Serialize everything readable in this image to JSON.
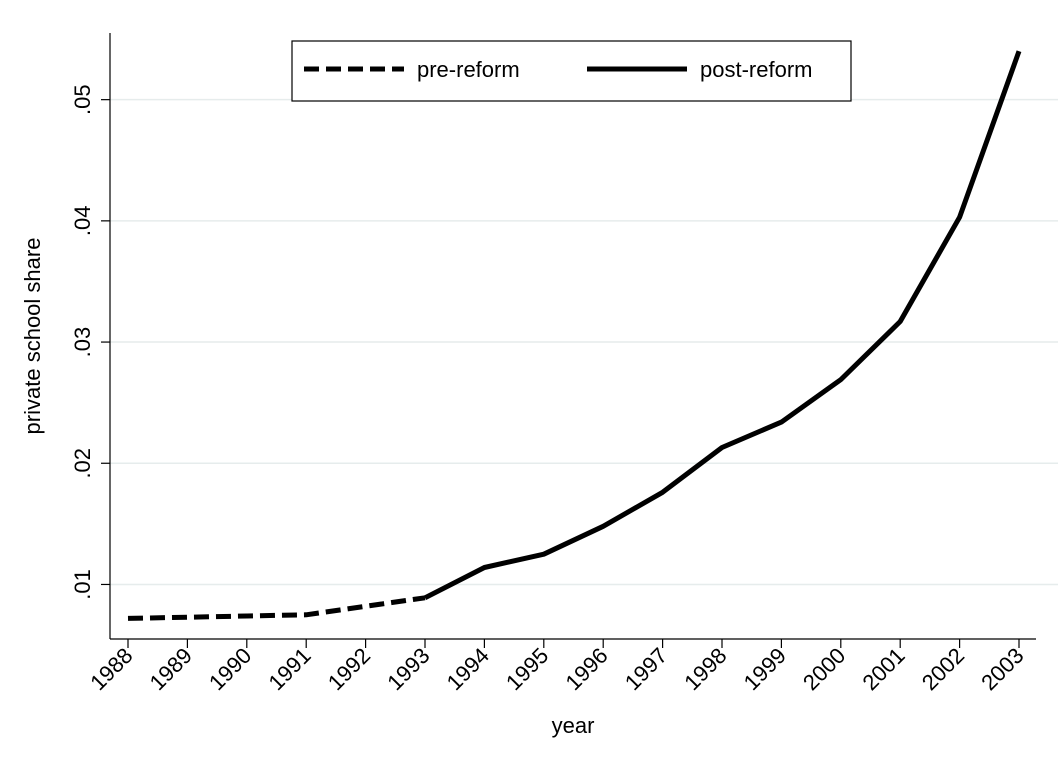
{
  "chart_data": {
    "type": "line",
    "title": "",
    "xlabel": "year",
    "ylabel": "private school share",
    "x": [
      1988,
      1989,
      1990,
      1991,
      1992,
      1993,
      1994,
      1995,
      1996,
      1997,
      1998,
      1999,
      2000,
      2001,
      2002,
      2003
    ],
    "xticks": [
      "1988",
      "1989",
      "1990",
      "1991",
      "1992",
      "1993",
      "1994",
      "1995",
      "1996",
      "1997",
      "1998",
      "1999",
      "2000",
      "2001",
      "2002",
      "2003"
    ],
    "yticks": [
      0.01,
      0.02,
      0.03,
      0.04,
      0.05
    ],
    "ytick_labels": [
      ".01",
      ".02",
      ".03",
      ".04",
      ".05"
    ],
    "ylim": [
      0.0055,
      0.0555
    ],
    "grid": true,
    "legend_position": "top-center",
    "series": [
      {
        "name": "pre-reform",
        "style": "dashed",
        "color": "#000000",
        "x": [
          1988,
          1989,
          1990,
          1991,
          1992,
          1993
        ],
        "values": [
          0.0072,
          0.0073,
          0.0074,
          0.0075,
          0.0082,
          0.0089
        ]
      },
      {
        "name": "post-reform",
        "style": "solid",
        "color": "#000000",
        "x": [
          1993,
          1994,
          1995,
          1996,
          1997,
          1998,
          1999,
          2000,
          2001,
          2002,
          2003
        ],
        "values": [
          0.0089,
          0.0114,
          0.0125,
          0.0148,
          0.0176,
          0.0213,
          0.0234,
          0.0269,
          0.0317,
          0.0403,
          0.054
        ]
      }
    ]
  }
}
